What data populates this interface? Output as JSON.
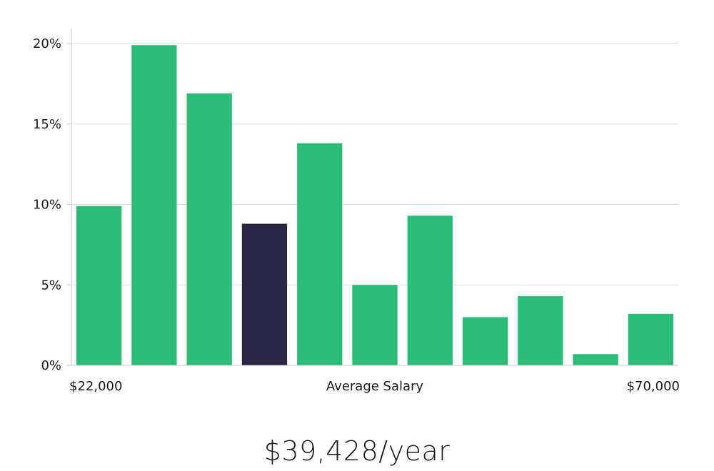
{
  "chart_data": {
    "type": "bar",
    "title": "",
    "xlabel": "Average Salary",
    "ylabel": "",
    "x_range_labels": [
      "$22,000",
      "$70,000"
    ],
    "ylim": [
      0,
      20
    ],
    "y_ticks": [
      0,
      5,
      10,
      15,
      20
    ],
    "y_tick_labels": [
      "0%",
      "5%",
      "10%",
      "15%",
      "20%"
    ],
    "grid": true,
    "values": [
      9.9,
      19.9,
      16.9,
      8.8,
      13.8,
      5.0,
      9.3,
      3.0,
      4.3,
      0.7,
      3.2
    ],
    "highlight_index": 3,
    "colors": {
      "bar": "#2bbd77",
      "highlight": "#2a2645",
      "grid": "#dddddd",
      "axis": "#cccccc"
    }
  },
  "salary": {
    "label": "$39,428/year"
  }
}
